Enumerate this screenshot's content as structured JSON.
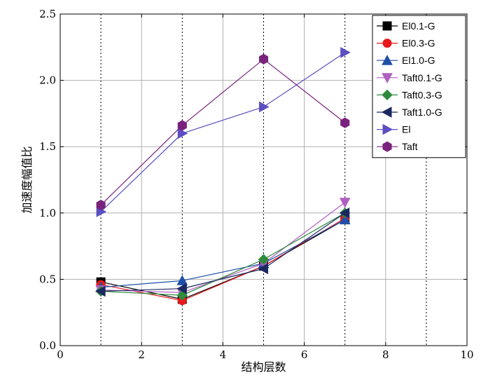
{
  "chart_data": {
    "type": "line",
    "title": "",
    "xlabel": "结构层数",
    "ylabel": "加速度幅值比",
    "xlim": [
      0,
      10
    ],
    "ylim": [
      0,
      2.5
    ],
    "xticks": [
      "0",
      "2",
      "4",
      "6",
      "8",
      "10"
    ],
    "yticks": [
      "0.0",
      "0.5",
      "1.0",
      "1.5",
      "2.0",
      "2.5"
    ],
    "x": [
      1,
      3,
      5,
      7
    ],
    "grid": true,
    "minor_dotted_lines_at_x": [
      1,
      3,
      5,
      7,
      9
    ],
    "legend_position": "top-right",
    "series": [
      {
        "name": "El0.1-G",
        "values": [
          0.48,
          0.35,
          0.6,
          0.95
        ],
        "color": "#000000",
        "marker": "square"
      },
      {
        "name": "El0.3-G",
        "values": [
          0.46,
          0.34,
          0.6,
          0.96
        ],
        "color": "#e8191c",
        "marker": "circle"
      },
      {
        "name": "El1.0-G",
        "values": [
          0.44,
          0.49,
          0.62,
          0.95
        ],
        "color": "#1f4fa8",
        "marker": "triangle-up"
      },
      {
        "name": "Taft0.1-G",
        "values": [
          0.42,
          0.4,
          0.62,
          1.08
        ],
        "color": "#b05fc1",
        "marker": "triangle-down"
      },
      {
        "name": "Taft0.3-G",
        "values": [
          0.41,
          0.38,
          0.65,
          1.0
        ],
        "color": "#2e8b3e",
        "marker": "diamond"
      },
      {
        "name": "Taft1.0-G",
        "values": [
          0.41,
          0.43,
          0.58,
          1.0
        ],
        "color": "#1c2860",
        "marker": "triangle-left"
      },
      {
        "name": "El",
        "values": [
          1.01,
          1.6,
          1.8,
          2.21
        ],
        "color": "#5b4fc2",
        "marker": "triangle-right"
      },
      {
        "name": "Taft",
        "values": [
          1.06,
          1.66,
          2.16,
          1.68
        ],
        "color": "#7a237d",
        "marker": "hexagon"
      }
    ]
  }
}
